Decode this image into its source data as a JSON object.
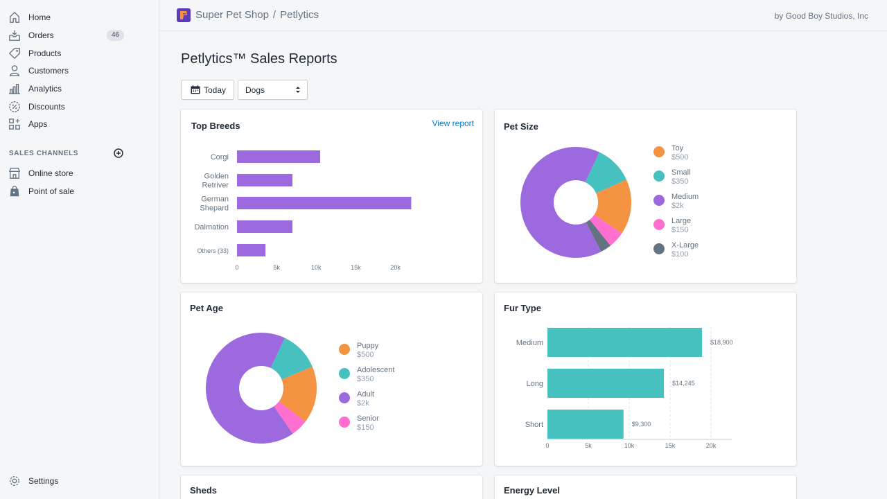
{
  "sidebar": {
    "nav": [
      {
        "label": "Home",
        "icon": "home-icon"
      },
      {
        "label": "Orders",
        "icon": "orders-icon",
        "badge": "46"
      },
      {
        "label": "Products",
        "icon": "tag-icon"
      },
      {
        "label": "Customers",
        "icon": "person-icon"
      },
      {
        "label": "Analytics",
        "icon": "bar-chart-icon"
      },
      {
        "label": "Discounts",
        "icon": "discount-icon"
      },
      {
        "label": "Apps",
        "icon": "apps-icon"
      }
    ],
    "channels_title": "SALES CHANNELS",
    "channels": [
      {
        "label": "Online store",
        "icon": "store-icon"
      },
      {
        "label": "Point of sale",
        "icon": "shopping-bag-icon"
      }
    ],
    "settings_label": "Settings"
  },
  "topbar": {
    "shop_name": "Super Pet Shop",
    "separator": "/",
    "app_name": "Petlytics",
    "byline": "by Good Boy Studios, Inc"
  },
  "page": {
    "title": "Petlytics™ Sales Reports",
    "date_button": "Today",
    "category_select": "Dogs"
  },
  "colors": {
    "purple": "#9c6ade",
    "teal": "#47c1bf",
    "orange": "#f49342",
    "pink": "#ff6fcf",
    "slate": "#637381",
    "link": "#007ace"
  },
  "cards": {
    "top_breeds_title": "Top Breeds",
    "view_report": "View report",
    "pet_size_title": "Pet Size",
    "pet_age_title": "Pet Age",
    "fur_type_title": "Fur Type",
    "sheds_title": "Sheds",
    "energy_title": "Energy Level"
  },
  "chart_data": [
    {
      "id": "top-breeds",
      "type": "bar",
      "orientation": "horizontal",
      "categories": [
        [
          "Corgi"
        ],
        [
          "Golden",
          "Retriver"
        ],
        [
          "German",
          "Shepard"
        ],
        [
          "Dalmation"
        ],
        [
          "Others (33)"
        ]
      ],
      "values": [
        10500,
        7000,
        22000,
        7000,
        3600
      ],
      "xticks": [
        0,
        5000,
        10000,
        15000,
        20000
      ],
      "xtick_labels": [
        "0",
        "5k",
        "10k",
        "15k",
        "20k"
      ],
      "xlim": [
        0,
        23000
      ],
      "color": "#9c6ade",
      "grid": false
    },
    {
      "id": "pet-size",
      "type": "pie",
      "donut": true,
      "slices": [
        {
          "name": "Toy",
          "label": "$500",
          "value": 500,
          "color": "#f49342"
        },
        {
          "name": "Small",
          "label": "$350",
          "value": 350,
          "color": "#47c1bf"
        },
        {
          "name": "Medium",
          "label": "$2k",
          "value": 2000,
          "color": "#9c6ade"
        },
        {
          "name": "Large",
          "label": "$150",
          "value": 150,
          "color": "#ff6fcf"
        },
        {
          "name": "X-Large",
          "label": "$100",
          "value": 100,
          "color": "#637381"
        }
      ],
      "order": [
        "Medium",
        "Small",
        "Toy",
        "Large",
        "X-Large"
      ],
      "legend": "right"
    },
    {
      "id": "pet-age",
      "type": "pie",
      "donut": true,
      "slices": [
        {
          "name": "Puppy",
          "label": "$500",
          "value": 500,
          "color": "#f49342"
        },
        {
          "name": "Adolescent",
          "label": "$350",
          "value": 350,
          "color": "#47c1bf"
        },
        {
          "name": "Adult",
          "label": "$2k",
          "value": 2000,
          "color": "#9c6ade"
        },
        {
          "name": "Senior",
          "label": "$150",
          "value": 150,
          "color": "#ff6fcf"
        }
      ],
      "order": [
        "Adult",
        "Adolescent",
        "Puppy",
        "Senior"
      ],
      "legend": "right"
    },
    {
      "id": "fur-type",
      "type": "bar",
      "orientation": "horizontal",
      "categories": [
        "Medium",
        "Long",
        "Short"
      ],
      "values": [
        18900,
        14245,
        9300
      ],
      "data_labels": [
        "$18,900",
        "$14,245",
        "$9,300"
      ],
      "xticks": [
        0,
        5000,
        10000,
        15000,
        20000
      ],
      "xtick_labels": [
        "0",
        "5k",
        "10k",
        "15k",
        "20k"
      ],
      "xlim": [
        0,
        22500
      ],
      "color": "#47c1bf",
      "grid": true
    }
  ]
}
